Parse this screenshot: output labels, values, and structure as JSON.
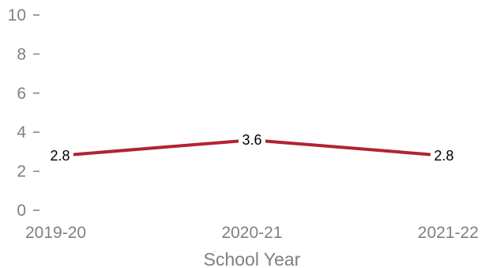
{
  "chart_data": {
    "type": "line",
    "categories": [
      "2019-20",
      "2020-21",
      "2021-22"
    ],
    "series": [
      {
        "values": [
          2.8,
          3.6,
          2.8
        ],
        "color": "#b22234"
      }
    ],
    "xlabel": "School Year",
    "ylabel": "",
    "ylim": [
      0,
      10
    ],
    "yticks": [
      0,
      2,
      4,
      6,
      8,
      10
    ],
    "grid": false,
    "data_labels": true
  }
}
